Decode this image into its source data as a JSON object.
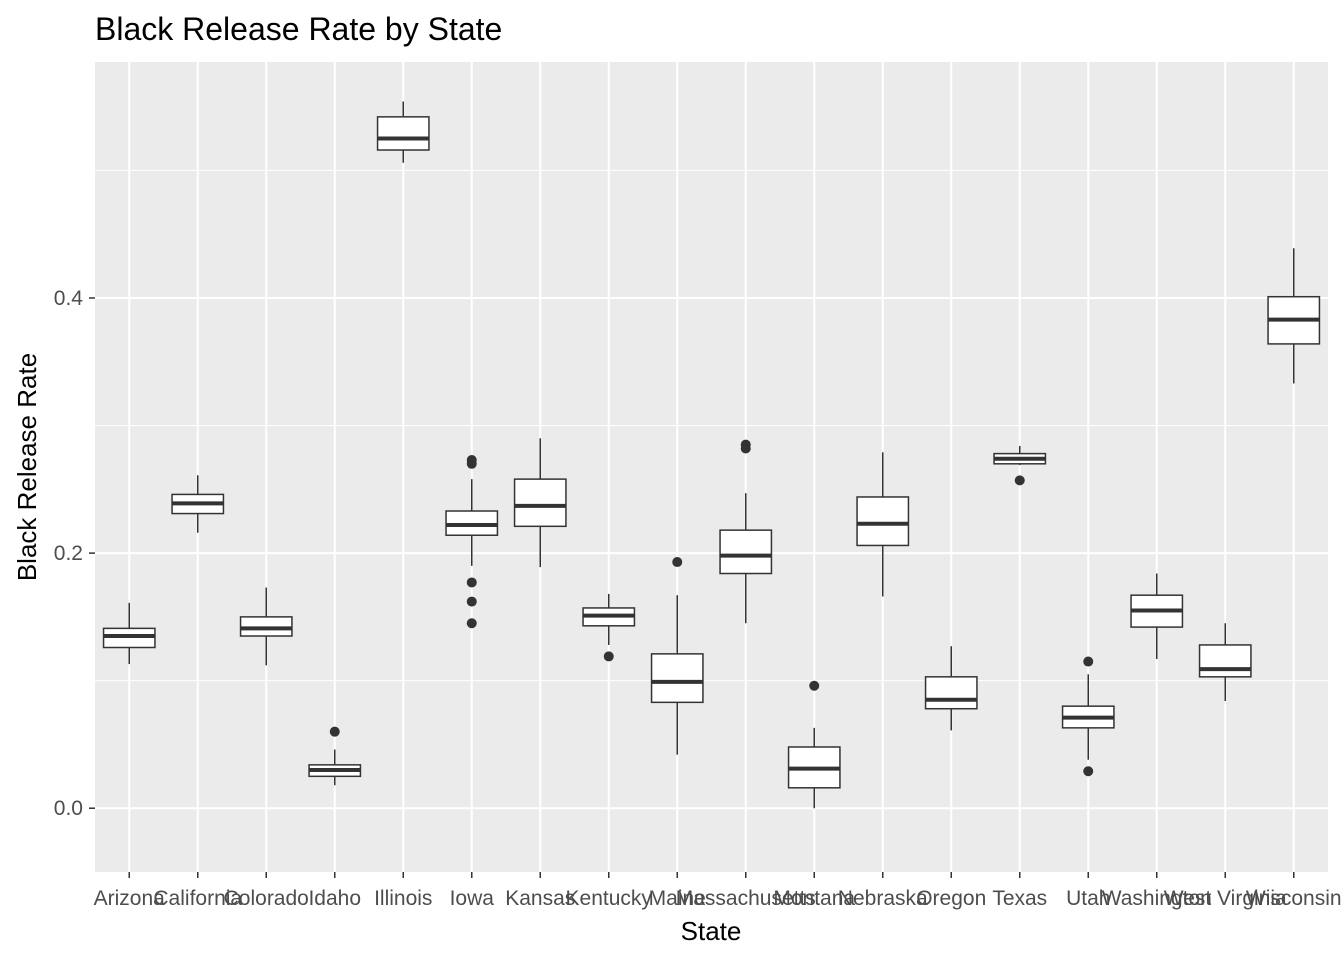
{
  "chart_data": {
    "type": "boxplot",
    "title": "Black Release Rate by State",
    "xlabel": "State",
    "ylabel": "Black Release Rate",
    "ylim": [
      -0.05,
      0.585
    ],
    "yticks": [
      {
        "value": 0.0,
        "label": "0.0"
      },
      {
        "value": 0.2,
        "label": "0.2"
      },
      {
        "value": 0.4,
        "label": "0.4"
      }
    ],
    "minor_y": [
      0.1,
      0.3,
      0.5
    ],
    "grid": true,
    "legend": "none",
    "colors": {
      "panel": "#EBEBEB",
      "grid": "#FFFFFF",
      "box_fill": "#FFFFFF",
      "box_line": "#333333",
      "outlier": "#333333"
    },
    "boxes": [
      {
        "category": "Arizona",
        "min": 0.113,
        "q1": 0.126,
        "median": 0.135,
        "q3": 0.141,
        "max": 0.161,
        "outliers": []
      },
      {
        "category": "California",
        "min": 0.216,
        "q1": 0.231,
        "median": 0.239,
        "q3": 0.246,
        "max": 0.261,
        "outliers": []
      },
      {
        "category": "Colorado",
        "min": 0.112,
        "q1": 0.135,
        "median": 0.141,
        "q3": 0.15,
        "max": 0.173,
        "outliers": []
      },
      {
        "category": "Idaho",
        "min": 0.018,
        "q1": 0.025,
        "median": 0.03,
        "q3": 0.034,
        "max": 0.046,
        "outliers": [
          0.06
        ]
      },
      {
        "category": "Illinois",
        "min": 0.506,
        "q1": 0.516,
        "median": 0.525,
        "q3": 0.542,
        "max": 0.554,
        "outliers": []
      },
      {
        "category": "Iowa",
        "min": 0.19,
        "q1": 0.214,
        "median": 0.222,
        "q3": 0.233,
        "max": 0.258,
        "outliers": [
          0.27,
          0.273,
          0.177,
          0.162,
          0.145
        ]
      },
      {
        "category": "Kansas",
        "min": 0.189,
        "q1": 0.221,
        "median": 0.237,
        "q3": 0.258,
        "max": 0.29,
        "outliers": []
      },
      {
        "category": "Kentucky",
        "min": 0.128,
        "q1": 0.143,
        "median": 0.151,
        "q3": 0.157,
        "max": 0.168,
        "outliers": [
          0.119
        ]
      },
      {
        "category": "Maine",
        "min": 0.042,
        "q1": 0.083,
        "median": 0.099,
        "q3": 0.121,
        "max": 0.167,
        "outliers": [
          0.193
        ]
      },
      {
        "category": "Massachusetts",
        "min": 0.145,
        "q1": 0.184,
        "median": 0.198,
        "q3": 0.218,
        "max": 0.247,
        "outliers": [
          0.282,
          0.285
        ]
      },
      {
        "category": "Montana",
        "min": 0.0,
        "q1": 0.016,
        "median": 0.031,
        "q3": 0.048,
        "max": 0.063,
        "outliers": [
          0.096
        ]
      },
      {
        "category": "Nebraska",
        "min": 0.166,
        "q1": 0.206,
        "median": 0.223,
        "q3": 0.244,
        "max": 0.279,
        "outliers": []
      },
      {
        "category": "Oregon",
        "min": 0.061,
        "q1": 0.078,
        "median": 0.085,
        "q3": 0.103,
        "max": 0.127,
        "outliers": []
      },
      {
        "category": "Texas",
        "min": 0.269,
        "q1": 0.27,
        "median": 0.274,
        "q3": 0.278,
        "max": 0.284,
        "outliers": [
          0.257
        ]
      },
      {
        "category": "Utah",
        "min": 0.038,
        "q1": 0.063,
        "median": 0.071,
        "q3": 0.08,
        "max": 0.105,
        "outliers": [
          0.115,
          0.029
        ]
      },
      {
        "category": "Washington",
        "min": 0.117,
        "q1": 0.142,
        "median": 0.155,
        "q3": 0.167,
        "max": 0.184,
        "outliers": []
      },
      {
        "category": "West Virginia",
        "min": 0.084,
        "q1": 0.103,
        "median": 0.109,
        "q3": 0.128,
        "max": 0.145,
        "outliers": []
      },
      {
        "category": "Wisconsin",
        "min": 0.333,
        "q1": 0.364,
        "median": 0.383,
        "q3": 0.401,
        "max": 0.439,
        "outliers": []
      }
    ]
  }
}
